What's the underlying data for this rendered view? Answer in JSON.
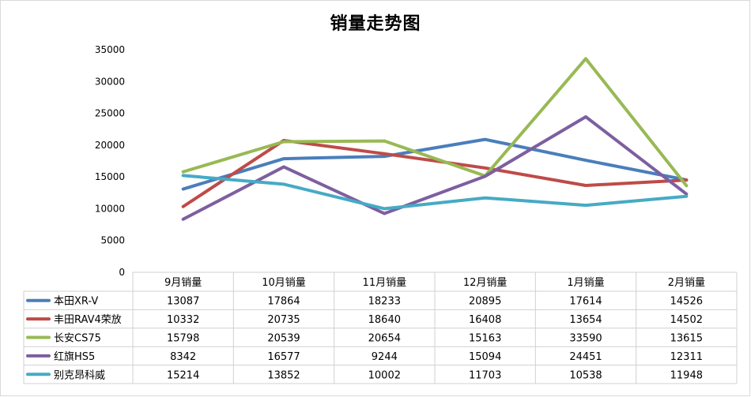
{
  "chart_data": {
    "type": "line",
    "title": "销量走势图",
    "categories": [
      "9月销量",
      "10月销量",
      "11月销量",
      "12月销量",
      "1月销量",
      "2月销量"
    ],
    "ylim": [
      0,
      35000
    ],
    "yticks": [
      "0",
      "5000",
      "10000",
      "15000",
      "20000",
      "25000",
      "30000",
      "35000"
    ],
    "grid": false,
    "legend_placement": "data-table-left",
    "series": [
      {
        "name": "本田XR-V",
        "color": "#4a7ebb",
        "values": [
          13087,
          17864,
          18233,
          20895,
          17614,
          14526
        ]
      },
      {
        "name": "丰田RAV4荣放",
        "color": "#be4b48",
        "values": [
          10332,
          20735,
          18640,
          16408,
          13654,
          14502
        ]
      },
      {
        "name": "长安CS75",
        "color": "#98b954",
        "values": [
          15798,
          20539,
          20654,
          15163,
          33590,
          13615
        ]
      },
      {
        "name": "红旗HS5",
        "color": "#7d5fa0",
        "values": [
          8342,
          16577,
          9244,
          15094,
          24451,
          12311
        ]
      },
      {
        "name": "别克昂科威",
        "color": "#46aac5",
        "values": [
          15214,
          13852,
          10002,
          11703,
          10538,
          11948
        ]
      }
    ]
  }
}
